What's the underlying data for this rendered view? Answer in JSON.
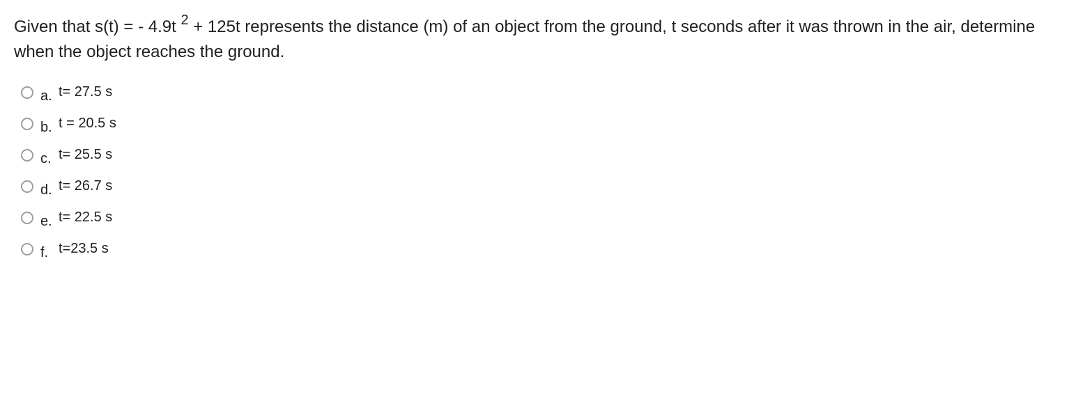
{
  "question": {
    "prefix": "Given that s(t) = - 4.9t ",
    "exponent": "2",
    "suffix": " + 125t represents the distance (m) of an object from the ground, t seconds after it was thrown in the air, determine when the object reaches the ground."
  },
  "options": [
    {
      "letter": "a.",
      "text": "t= 27.5 s"
    },
    {
      "letter": "b.",
      "text": "t = 20.5 s"
    },
    {
      "letter": "c.",
      "text": "t= 25.5 s"
    },
    {
      "letter": "d.",
      "text": "t= 26.7 s"
    },
    {
      "letter": "e.",
      "text": "t= 22.5 s"
    },
    {
      "letter": "f.",
      "text": "t=23.5 s"
    }
  ]
}
